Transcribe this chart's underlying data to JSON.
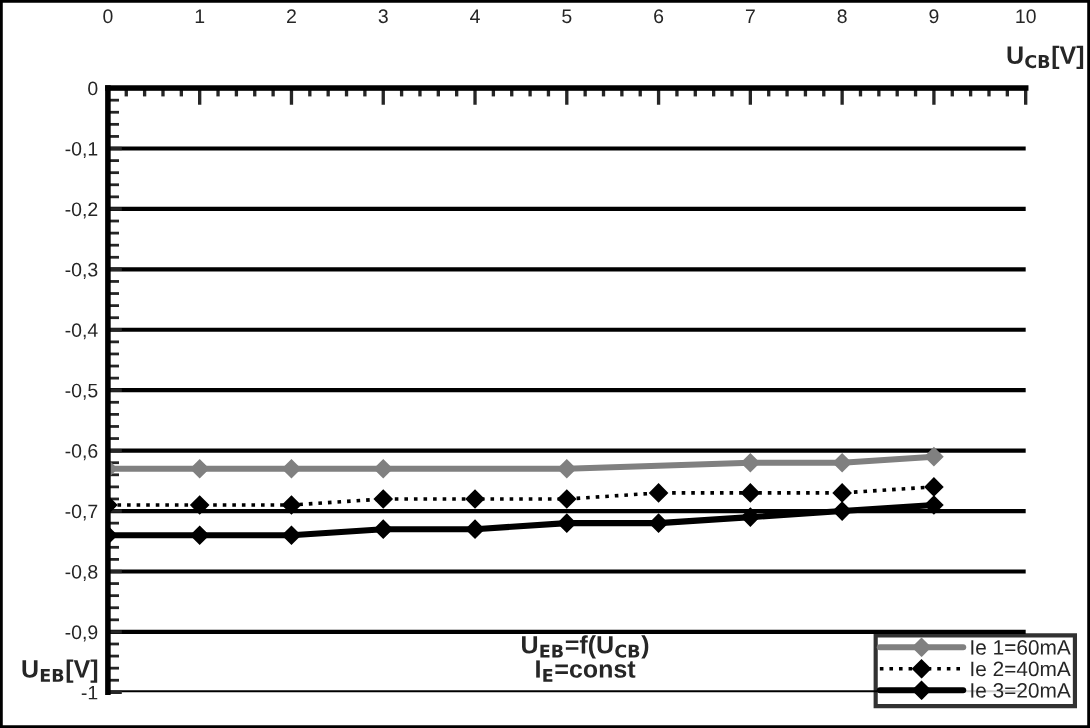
{
  "chart_data": {
    "type": "line",
    "xlabel": "U$_{CB}$[V]",
    "ylabel": "U$_{EB}$[V]",
    "xlim": [
      0,
      10
    ],
    "xticks": [
      0,
      1,
      2,
      3,
      4,
      5,
      6,
      7,
      8,
      9,
      10
    ],
    "ylim": [
      -1,
      0
    ],
    "yticks": [
      {
        "value": 0,
        "label": "0"
      },
      {
        "value": -0.1,
        "label": "-0,1"
      },
      {
        "value": -0.2,
        "label": "-0,2"
      },
      {
        "value": -0.3,
        "label": "-0,3"
      },
      {
        "value": -0.4,
        "label": "-0,4"
      },
      {
        "value": -0.5,
        "label": "-0,5"
      },
      {
        "value": -0.6,
        "label": "-0,6"
      },
      {
        "value": -0.7,
        "label": "-0,7"
      },
      {
        "value": -0.8,
        "label": "-0,8"
      },
      {
        "value": -0.9,
        "label": "-0,9"
      },
      {
        "value": -1,
        "label": "-1"
      }
    ],
    "grid": "y",
    "legend": "bottom right",
    "marker": "diamond",
    "series": [
      {
        "name": "Ie 1=60mA",
        "color": "#808080",
        "line_style": "solid",
        "x": [
          0,
          1,
          2,
          3,
          5,
          7,
          8,
          9
        ],
        "values": [
          -0.63,
          -0.63,
          -0.63,
          -0.63,
          -0.63,
          -0.62,
          -0.62,
          -0.61
        ]
      },
      {
        "name": "Ie 2=40mA",
        "color": "#000000",
        "line_style": "dotted",
        "x": [
          0,
          1,
          2,
          3,
          4,
          5,
          6,
          7,
          8,
          9
        ],
        "values": [
          -0.69,
          -0.69,
          -0.69,
          -0.68,
          -0.68,
          -0.68,
          -0.67,
          -0.67,
          -0.67,
          -0.66
        ]
      },
      {
        "name": "Ie 3=20mA",
        "color": "#000000",
        "line_style": "solid",
        "x": [
          0,
          1,
          2,
          3,
          4,
          5,
          6,
          7,
          8,
          9
        ],
        "values": [
          -0.74,
          -0.74,
          -0.74,
          -0.73,
          -0.73,
          -0.72,
          -0.72,
          -0.71,
          -0.7,
          -0.69
        ]
      }
    ],
    "annotations": [
      "U$_{EB}$=f(U$_{CB}$)",
      "I$_{E}$=const"
    ]
  }
}
